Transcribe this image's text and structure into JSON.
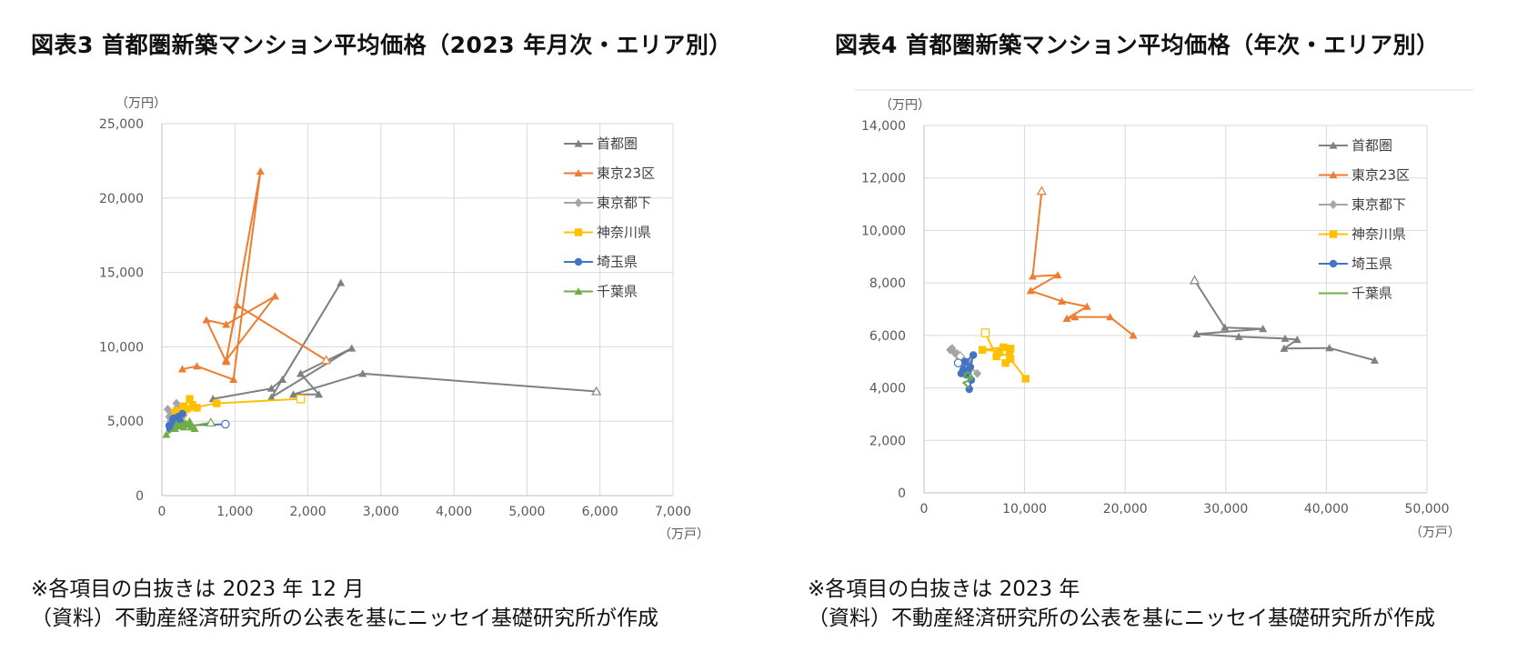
{
  "figure_left": {
    "title": "図表3 首都圏新築マンション平均価格（2023 年月次・エリア別）",
    "notes": [
      "※各項目の白抜きは 2023 年 12 月",
      "（資料）不動産経済研究所の公表を基にニッセイ基礎研究所が作成"
    ]
  },
  "figure_right": {
    "title": "図表4 首都圏新築マンション平均価格（年次・エリア別）",
    "notes": [
      "※各項目の白抜きは 2023 年",
      "（資料）不動産経済研究所の公表を基にニッセイ基礎研究所が作成"
    ]
  },
  "chart_data": [
    {
      "type": "scatter",
      "title": "",
      "xlabel": "（万戸）",
      "ylabel": "（万円）",
      "xlim": [
        0,
        7000
      ],
      "ylim": [
        0,
        25000
      ],
      "xticks": [
        "0",
        "1,000",
        "2,000",
        "3,000",
        "4,000",
        "5,000",
        "6,000",
        "7,000"
      ],
      "yticks": [
        "0",
        "5,000",
        "10,000",
        "15,000",
        "20,000",
        "25,000"
      ],
      "grid": true,
      "legend": "top-right",
      "series": [
        {
          "name": "首都圏",
          "color": "#808080",
          "marker": "triangle",
          "points": [
            [
              700,
              6500
            ],
            [
              1500,
              7200
            ],
            [
              1650,
              7800
            ],
            [
              2450,
              14300
            ],
            [
              1500,
              6600
            ],
            [
              2600,
              9900
            ],
            [
              1900,
              8200
            ],
            [
              2150,
              6800
            ],
            [
              1800,
              6800
            ],
            [
              2750,
              8200
            ],
            [
              5950,
              7000
            ]
          ]
        },
        {
          "name": "東京23区",
          "color": "#ED7D31",
          "marker": "triangle",
          "points": [
            [
              280,
              8500
            ],
            [
              480,
              8700
            ],
            [
              980,
              7800
            ],
            [
              1350,
              21800
            ],
            [
              880,
              9000
            ],
            [
              610,
              11800
            ],
            [
              880,
              11500
            ],
            [
              1550,
              13400
            ],
            [
              880,
              9100
            ],
            [
              1030,
              12800
            ],
            [
              2250,
              9100
            ]
          ]
        },
        {
          "name": "東京都下",
          "color": "#A5A5A5",
          "marker": "diamond",
          "points": [
            [
              80,
              5800
            ],
            [
              150,
              5500
            ],
            [
              200,
              6200
            ],
            [
              120,
              5000
            ],
            [
              250,
              5200
            ],
            [
              180,
              4800
            ],
            [
              300,
              5400
            ],
            [
              220,
              5900
            ],
            [
              100,
              5300
            ],
            [
              160,
              5600
            ],
            [
              140,
              5100
            ]
          ]
        },
        {
          "name": "神奈川県",
          "color": "#FFC000",
          "marker": "square",
          "points": [
            [
              180,
              5500
            ],
            [
              300,
              6000
            ],
            [
              380,
              6500
            ],
            [
              480,
              5900
            ],
            [
              230,
              5400
            ],
            [
              420,
              6100
            ],
            [
              330,
              5800
            ],
            [
              280,
              5500
            ],
            [
              200,
              5700
            ],
            [
              750,
              6200
            ],
            [
              1900,
              6500
            ]
          ]
        },
        {
          "name": "埼玉県",
          "color": "#4472C4",
          "marker": "circle",
          "points": [
            [
              100,
              4700
            ],
            [
              150,
              5100
            ],
            [
              220,
              5300
            ],
            [
              280,
              5500
            ],
            [
              190,
              4900
            ],
            [
              110,
              4500
            ],
            [
              250,
              5000
            ],
            [
              180,
              4800
            ],
            [
              160,
              5200
            ],
            [
              230,
              4700
            ],
            [
              870,
              4800
            ]
          ]
        },
        {
          "name": "千葉県",
          "color": "#70AD47",
          "marker": "triangle",
          "points": [
            [
              60,
              4100
            ],
            [
              180,
              4500
            ],
            [
              280,
              4700
            ],
            [
              380,
              5000
            ],
            [
              450,
              4500
            ],
            [
              250,
              4700
            ],
            [
              200,
              4800
            ],
            [
              320,
              4900
            ],
            [
              400,
              4600
            ],
            [
              300,
              4600
            ],
            [
              670,
              4900
            ]
          ]
        }
      ]
    },
    {
      "type": "scatter",
      "title": "",
      "xlabel": "（万戸）",
      "ylabel": "（万円）",
      "xlim": [
        0,
        50000
      ],
      "ylim": [
        0,
        14000
      ],
      "xticks": [
        "0",
        "10,000",
        "20,000",
        "30,000",
        "40,000",
        "50,000"
      ],
      "yticks": [
        "0",
        "2,000",
        "4,000",
        "6,000",
        "8,000",
        "10,000",
        "12,000",
        "14,000"
      ],
      "grid": true,
      "legend": "top-right",
      "series": [
        {
          "name": "首都圏",
          "color": "#808080",
          "marker": "triangle",
          "points": [
            [
              44800,
              5050
            ],
            [
              40300,
              5520
            ],
            [
              35800,
              5500
            ],
            [
              37100,
              5840
            ],
            [
              35900,
              5880
            ],
            [
              31300,
              5950
            ],
            [
              27100,
              6050
            ],
            [
              33700,
              6250
            ],
            [
              29900,
              6300
            ],
            [
              26900,
              8100
            ]
          ]
        },
        {
          "name": "東京23区",
          "color": "#ED7D31",
          "marker": "triangle",
          "points": [
            [
              20800,
              6000
            ],
            [
              18500,
              6700
            ],
            [
              15000,
              6700
            ],
            [
              14200,
              6640
            ],
            [
              16200,
              7100
            ],
            [
              13700,
              7300
            ],
            [
              10600,
              7700
            ],
            [
              13300,
              8300
            ],
            [
              10800,
              8250
            ],
            [
              11700,
              11500
            ]
          ]
        },
        {
          "name": "東京都下",
          "color": "#A5A5A5",
          "marker": "diamond",
          "points": [
            [
              5300,
              4550
            ],
            [
              3000,
              5350
            ],
            [
              2600,
              5450
            ],
            [
              3400,
              5200
            ],
            [
              4000,
              4900
            ],
            [
              4500,
              5000
            ],
            [
              3800,
              5100
            ],
            [
              2800,
              5500
            ],
            [
              3300,
              5300
            ],
            [
              3600,
              5200
            ]
          ]
        },
        {
          "name": "神奈川県",
          "color": "#FFC000",
          "marker": "square",
          "points": [
            [
              10100,
              4350
            ],
            [
              8600,
              5100
            ],
            [
              8100,
              4950
            ],
            [
              8600,
              5500
            ],
            [
              7500,
              5400
            ],
            [
              5800,
              5450
            ],
            [
              7900,
              5550
            ],
            [
              8500,
              5300
            ],
            [
              7200,
              5200
            ],
            [
              6100,
              6100
            ]
          ]
        },
        {
          "name": "埼玉県",
          "color": "#4472C4",
          "marker": "circle",
          "points": [
            [
              4500,
              3950
            ],
            [
              4700,
              4300
            ],
            [
              3700,
              4550
            ],
            [
              4200,
              4500
            ],
            [
              4600,
              4800
            ],
            [
              4900,
              5250
            ],
            [
              4100,
              5000
            ],
            [
              3900,
              4700
            ],
            [
              4400,
              4650
            ],
            [
              3400,
              4950
            ]
          ]
        },
        {
          "name": "千葉県",
          "color": "#70AD47",
          "marker": "line",
          "points": [
            [
              4500,
              4000
            ],
            [
              4200,
              4100
            ],
            [
              3900,
              4200
            ],
            [
              4600,
              4300
            ],
            [
              4300,
              4400
            ],
            [
              4800,
              4350
            ],
            [
              4700,
              4500
            ],
            [
              4400,
              4600
            ],
            [
              4100,
              4550
            ],
            [
              4000,
              4400
            ]
          ]
        }
      ]
    }
  ]
}
